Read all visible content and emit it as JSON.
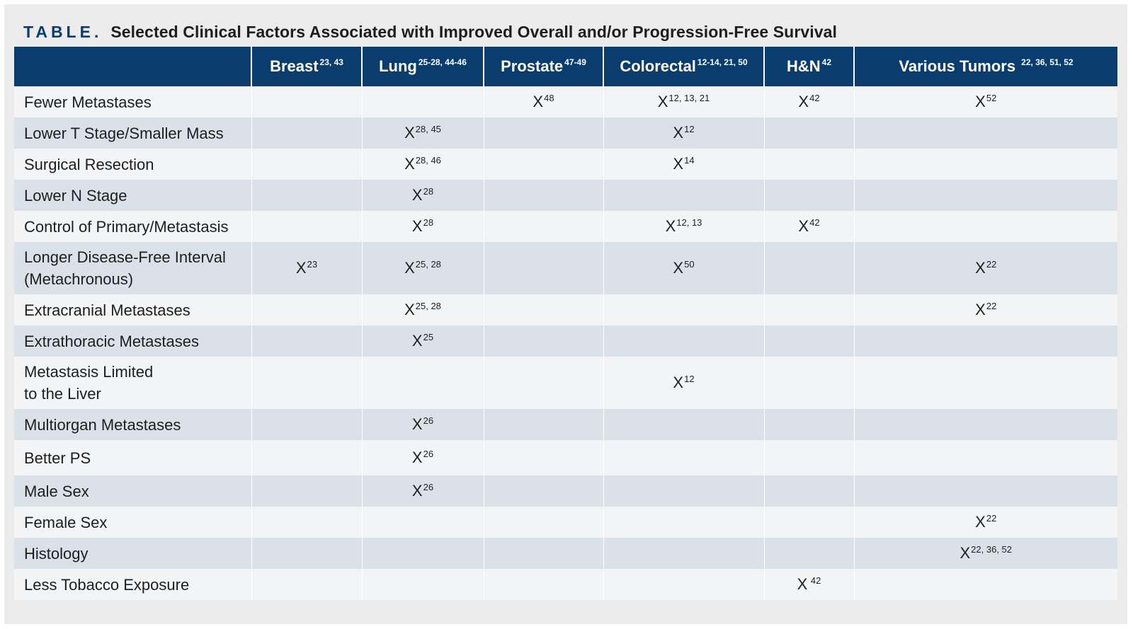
{
  "caption": {
    "label": "TABLE.",
    "title": "Selected Clinical Factors Associated with Improved Overall and/or Progression-Free Survival"
  },
  "columns": [
    {
      "label": "",
      "ref": ""
    },
    {
      "label": "Breast",
      "ref": "23, 43"
    },
    {
      "label": "Lung",
      "ref": "25-28, 44-46"
    },
    {
      "label": "Prostate",
      "ref": "47-49"
    },
    {
      "label": "Colorectal",
      "ref": "12-14, 21, 50"
    },
    {
      "label": "H&N",
      "ref": "42"
    },
    {
      "label": "Various Tumors ",
      "ref": "22, 36, 51, 52"
    }
  ],
  "rows": [
    {
      "factor": "Fewer Metastases",
      "cells": [
        "",
        "",
        "48",
        "12, 13, 21",
        "42",
        "52"
      ]
    },
    {
      "factor": "Lower T Stage/Smaller Mass",
      "cells": [
        "",
        "28, 45",
        "",
        "12",
        "",
        ""
      ]
    },
    {
      "factor": "Surgical Resection",
      "cells": [
        "",
        "28, 46",
        "",
        "14",
        "",
        ""
      ]
    },
    {
      "factor": "Lower N Stage",
      "cells": [
        "",
        "28",
        "",
        "",
        "",
        ""
      ]
    },
    {
      "factor": "Control of Primary/Metastasis",
      "cells": [
        "",
        "28",
        "",
        "12, 13",
        "42",
        ""
      ]
    },
    {
      "factor": "Longer Disease-Free Interval\n(Metachronous)",
      "cells": [
        "23",
        "25, 28",
        "",
        "50",
        "",
        "22"
      ]
    },
    {
      "factor": "Extracranial Metastases",
      "cells": [
        "",
        "25, 28",
        "",
        "",
        "",
        "22"
      ]
    },
    {
      "factor": "Extrathoracic Metastases",
      "cells": [
        "",
        "25",
        "",
        "",
        "",
        ""
      ]
    },
    {
      "factor": "Metastasis Limited\nto the Liver",
      "cells": [
        "",
        "",
        "",
        "12",
        "",
        ""
      ]
    },
    {
      "factor": "Multiorgan Metastases",
      "cells": [
        "",
        "26",
        "",
        "",
        "",
        ""
      ]
    },
    {
      "factor": "Better PS",
      "cells": [
        "",
        "26",
        "",
        "",
        "",
        ""
      ]
    },
    {
      "factor": "Male Sex",
      "cells": [
        "",
        "26",
        "",
        "",
        "",
        ""
      ]
    },
    {
      "factor": "Female Sex",
      "cells": [
        "",
        "",
        "",
        "",
        "",
        "22"
      ]
    },
    {
      "factor": "Histology",
      "cells": [
        "",
        "",
        "",
        "",
        "",
        "22, 36, 52"
      ]
    },
    {
      "factor": "Less Tobacco Exposure",
      "cells": [
        "",
        "",
        "",
        "",
        " 42",
        ""
      ]
    }
  ],
  "mark_symbol": "X",
  "colors": {
    "header_bg": "#0a3d6e",
    "header_text": "#ffffff",
    "caption_label": "#0a3d73",
    "row_light": "#f2f4f6",
    "row_dark": "#dae1e8",
    "frame_bg": "#ececec"
  }
}
